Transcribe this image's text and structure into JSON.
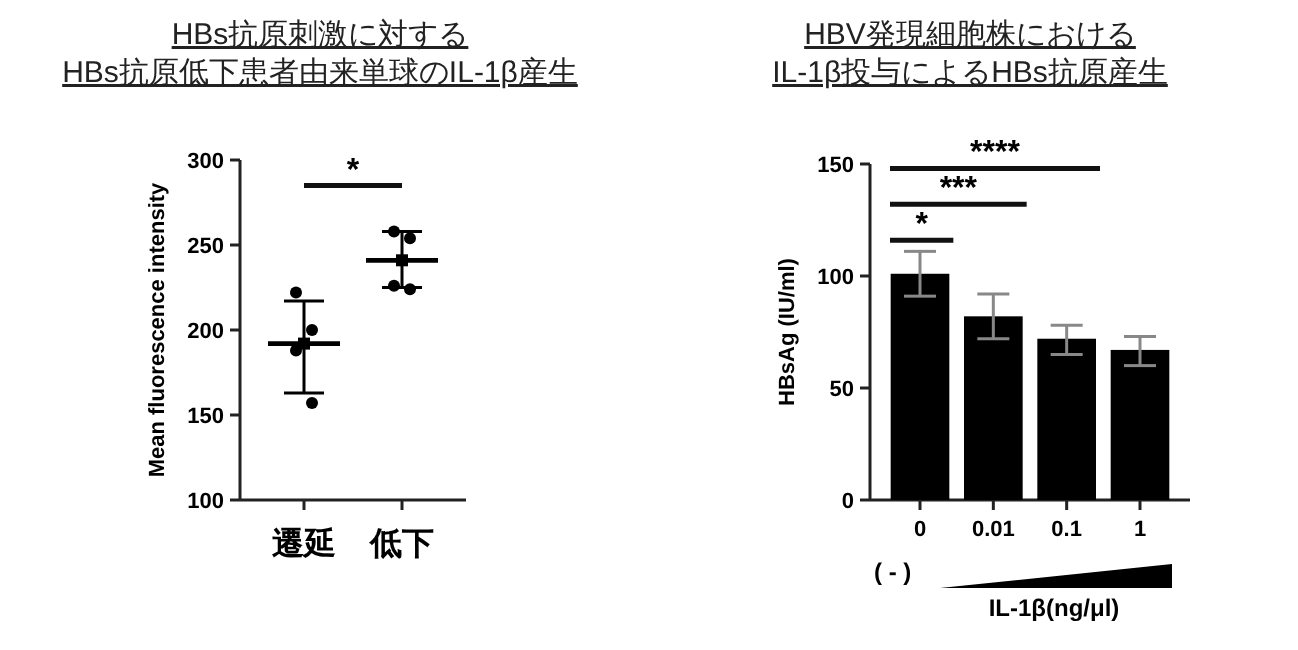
{
  "chart_data": [
    {
      "type": "scatter",
      "title": "HBs抗原刺激に対する\nHBs抗原低下患者由来単球のIL-1β産生",
      "ylabel": "Mean fluorescence intensity",
      "categories": [
        "遷延",
        "低下"
      ],
      "ylim": [
        100,
        300
      ],
      "yticks": [
        100,
        150,
        200,
        250,
        300
      ],
      "marker": "circle",
      "annotations": [
        "*"
      ],
      "series": [
        {
          "type": "scatter",
          "color": "#000000",
          "x": [
            "遷延",
            "遷延",
            "遷延",
            "遷延",
            "低下",
            "低下",
            "低下",
            "低下"
          ],
          "values": [
            222,
            200,
            188,
            157,
            258,
            254,
            226,
            224
          ]
        },
        {
          "type": "scatter",
          "marker": "square",
          "color": "#000000",
          "values": [
            192,
            241
          ],
          "errors": [
            [
              163,
              217
            ],
            [
              225,
              258
            ]
          ]
        }
      ]
    },
    {
      "type": "bar",
      "title": "HBV発現細胞株における\nIL-1β投与によるHBs抗原産生",
      "ylabel": "HBsAg (IU/ml)",
      "xlabel": "IL-1β(ng/μl)",
      "categories": [
        "0",
        "0.01",
        "0.1",
        "1"
      ],
      "values": [
        101,
        82,
        72,
        67
      ],
      "color": "#000000",
      "errors": [
        10,
        10,
        [
          65,
          78
        ],
        [
          60,
          73
        ]
      ],
      "ylim": [
        0,
        150
      ],
      "yticks": [
        0,
        50,
        100,
        150
      ],
      "annotations": [
        "*",
        "***",
        "****",
        "( - )"
      ]
    }
  ]
}
